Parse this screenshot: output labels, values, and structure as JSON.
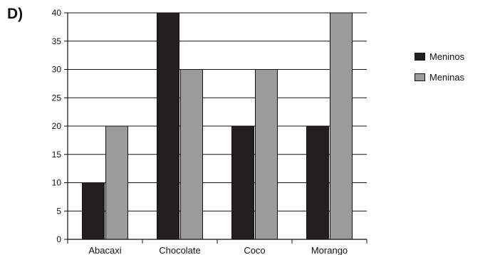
{
  "panel_label": "D)",
  "chart_data": {
    "type": "bar",
    "title": "",
    "xlabel": "",
    "ylabel": "",
    "categories": [
      "Abacaxi",
      "Chocolate",
      "Coco",
      "Morango"
    ],
    "series": [
      {
        "name": "Meninos",
        "values": [
          10,
          40,
          20,
          20
        ],
        "color": "#231f20"
      },
      {
        "name": "Meninas",
        "values": [
          20,
          30,
          30,
          40
        ],
        "color": "#9b9b9b"
      }
    ],
    "ylim": [
      0,
      40
    ],
    "yticks": [
      0,
      5,
      10,
      15,
      20,
      25,
      30,
      35,
      40
    ],
    "grid": true,
    "legend": "right"
  }
}
